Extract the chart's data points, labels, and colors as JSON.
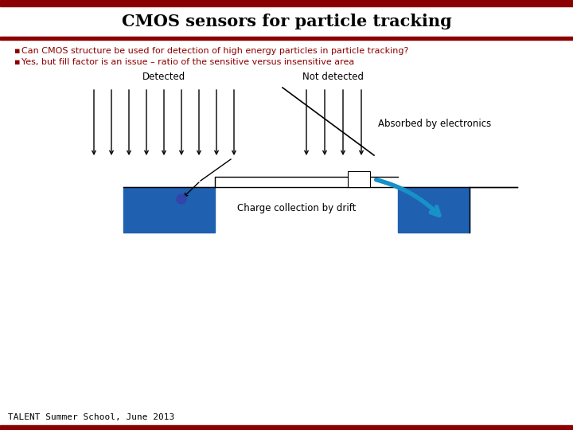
{
  "title": "CMOS sensors for particle tracking",
  "dark_red": "#8B0000",
  "bullet1": "Can CMOS structure be used for detection of high energy particles in particle tracking?",
  "bullet2": "Yes, but fill factor is an issue – ratio of the sensitive versus insensitive area",
  "footer_text": "TALENT Summer School, June 2013",
  "label_detected": "Detected",
  "label_not_detected": "Not detected",
  "label_absorbed": "Absorbed by electronics",
  "label_charge": "Charge collection by drift",
  "blue_color": "#2060B0",
  "blue_arrow_color": "#1890C8",
  "bg_color": "#ffffff"
}
